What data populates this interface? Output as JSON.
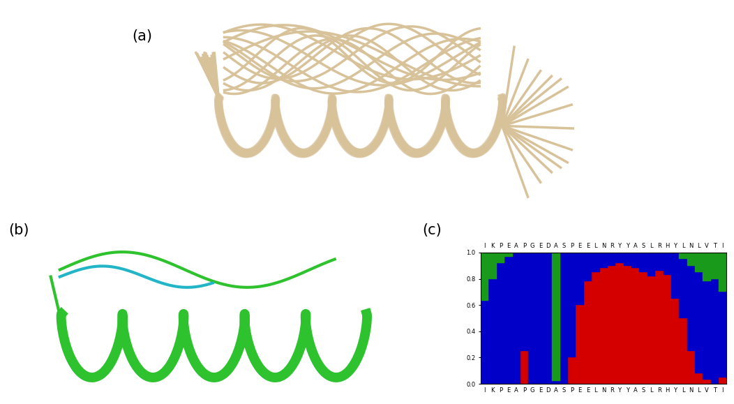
{
  "panel_labels": [
    "(a)",
    "(b)",
    "(c)"
  ],
  "chart_data": {
    "type": "bar",
    "stacked": true,
    "categories": [
      "I",
      "K",
      "P",
      "E",
      "A",
      "P",
      "G",
      "E",
      "D",
      "A",
      "S",
      "P",
      "E",
      "E",
      "L",
      "N",
      "R",
      "Y",
      "Y",
      "A",
      "S",
      "L",
      "R",
      "H",
      "Y",
      "L",
      "N",
      "L",
      "V",
      "T",
      "I"
    ],
    "series": [
      {
        "color": "#d40000",
        "values": [
          0,
          0,
          0,
          0,
          0,
          0.25,
          0,
          0,
          0,
          0,
          0,
          0.2,
          0.6,
          0.78,
          0.85,
          0.88,
          0.9,
          0.92,
          0.9,
          0.88,
          0.85,
          0.82,
          0.86,
          0.83,
          0.65,
          0.5,
          0.25,
          0.08,
          0.03,
          0,
          0.05
        ]
      },
      {
        "color": "#0000c8",
        "values": [
          0.63,
          0.8,
          0.92,
          0.97,
          1.0,
          0.75,
          1.0,
          1.0,
          1.0,
          0.02,
          1.0,
          0.8,
          0.4,
          0.22,
          0.15,
          0.12,
          0.1,
          0.08,
          0.1,
          0.12,
          0.15,
          0.18,
          0.14,
          0.17,
          0.35,
          0.45,
          0.65,
          0.77,
          0.75,
          0.8,
          0.65
        ]
      },
      {
        "color": "#1a9a1a",
        "values": [
          0.37,
          0.2,
          0.08,
          0.03,
          0,
          0,
          0,
          0,
          0,
          0.98,
          0,
          0,
          0,
          0,
          0,
          0,
          0,
          0,
          0,
          0,
          0,
          0,
          0,
          0,
          0,
          0.05,
          0.1,
          0.15,
          0.22,
          0.2,
          0.3
        ]
      }
    ],
    "ylim": [
      0,
      1
    ],
    "yticks": [
      {
        "value": 0.0,
        "label": "0.0"
      },
      {
        "value": 0.2,
        "label": "0.2"
      },
      {
        "value": 0.4,
        "label": "0.4"
      },
      {
        "value": 0.6,
        "label": "0.6"
      },
      {
        "value": 0.8,
        "label": "0.8"
      },
      {
        "value": 1.0,
        "label": "1.0"
      }
    ]
  }
}
